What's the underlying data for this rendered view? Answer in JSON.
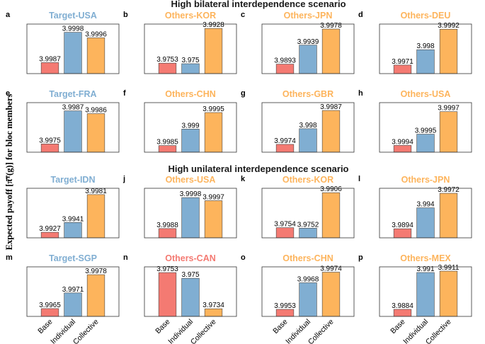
{
  "ylabel": "Expected payoff [πᵀ(g)] for bloc members",
  "scenarios": [
    "High bilateral interdependence scenario",
    "High unilateral interdependence scenario"
  ],
  "x_tick_labels": [
    "Base",
    "Individual",
    "Collective"
  ],
  "colors": {
    "base": "#f47a72",
    "individual": "#80aed2",
    "collective": "#fdb45c",
    "target_title": "#80aed2",
    "others_title": "#fdb45c"
  },
  "chart_data": [
    {
      "type": "bar",
      "letter": "a",
      "title": "Target-USA",
      "title_kind": "target",
      "categories": [
        "Base",
        "Individual",
        "Collective"
      ],
      "values": [
        3.9987,
        3.9998,
        3.9996
      ],
      "labels": [
        "3.9987",
        "3.9998",
        "3.9996"
      ],
      "ylim": [
        3.9983,
        4.0001
      ]
    },
    {
      "type": "bar",
      "letter": "b",
      "title": "Others-KOR",
      "title_kind": "others",
      "categories": [
        "Base",
        "Individual",
        "Collective"
      ],
      "values": [
        3.9753,
        3.975,
        3.9928
      ],
      "labels": [
        "3.9753",
        "3.975",
        "3.9928"
      ],
      "ylim": [
        3.97,
        3.995
      ]
    },
    {
      "type": "bar",
      "letter": "c",
      "title": "Others-JPN",
      "title_kind": "others",
      "categories": [
        "Base",
        "Individual",
        "Collective"
      ],
      "values": [
        3.9893,
        3.9939,
        3.9978
      ],
      "labels": [
        "3.9893",
        "3.9939",
        "3.9978"
      ],
      "ylim": [
        3.987,
        3.999
      ]
    },
    {
      "type": "bar",
      "letter": "d",
      "title": "Others-DEU",
      "title_kind": "others",
      "categories": [
        "Base",
        "Individual",
        "Collective"
      ],
      "values": [
        3.9971,
        3.998,
        3.9992
      ],
      "labels": [
        "3.9971",
        "3.998",
        "3.9992"
      ],
      "ylim": [
        3.9966,
        3.9995
      ]
    },
    {
      "type": "bar",
      "letter": "e",
      "title": "Target-FRA",
      "title_kind": "target",
      "categories": [
        "Base",
        "Individual",
        "Collective"
      ],
      "values": [
        3.9975,
        3.9987,
        3.9986
      ],
      "labels": [
        "3.9975",
        "3.9987",
        "3.9986"
      ],
      "ylim": [
        3.9972,
        3.999
      ]
    },
    {
      "type": "bar",
      "letter": "f",
      "title": "Others-CHN",
      "title_kind": "others",
      "categories": [
        "Base",
        "Individual",
        "Collective"
      ],
      "values": [
        3.9985,
        3.999,
        3.9995
      ],
      "labels": [
        "3.9985",
        "3.999",
        "3.9995"
      ],
      "ylim": [
        3.9983,
        3.9998
      ]
    },
    {
      "type": "bar",
      "letter": "g",
      "title": "Others-GBR",
      "title_kind": "others",
      "categories": [
        "Base",
        "Individual",
        "Collective"
      ],
      "values": [
        3.9974,
        3.998,
        3.9987
      ],
      "labels": [
        "3.9974",
        "3.998",
        "3.9987"
      ],
      "ylim": [
        3.9971,
        3.999
      ]
    },
    {
      "type": "bar",
      "letter": "h",
      "title": "Others-USA",
      "title_kind": "others",
      "categories": [
        "Base",
        "Individual",
        "Collective"
      ],
      "values": [
        3.9994,
        3.9995,
        3.9997
      ],
      "labels": [
        "3.9994",
        "3.9995",
        "3.9997"
      ],
      "ylim": [
        3.99934,
        3.99978
      ]
    },
    {
      "type": "bar",
      "letter": "i",
      "title": "Target-IDN",
      "title_kind": "target",
      "categories": [
        "Base",
        "Individual",
        "Collective"
      ],
      "values": [
        3.9927,
        3.9941,
        3.9981
      ],
      "labels": [
        "3.9927",
        "3.9941",
        "3.9981"
      ],
      "ylim": [
        3.9919,
        3.999
      ]
    },
    {
      "type": "bar",
      "letter": "j",
      "title": "Others-USA",
      "title_kind": "others",
      "categories": [
        "Base",
        "Individual",
        "Collective"
      ],
      "values": [
        3.9988,
        3.9998,
        3.9997
      ],
      "labels": [
        "3.9988",
        "3.9998",
        "3.9997"
      ],
      "ylim": [
        3.9985,
        4.0001
      ]
    },
    {
      "type": "bar",
      "letter": "k",
      "title": "Others-KOR",
      "title_kind": "others",
      "categories": [
        "Base",
        "Individual",
        "Collective"
      ],
      "values": [
        3.9754,
        3.9752,
        3.9906
      ],
      "labels": [
        "3.9754",
        "3.9752",
        "3.9906"
      ],
      "ylim": [
        3.971,
        3.9925
      ]
    },
    {
      "type": "bar",
      "letter": "l",
      "title": "Others-JPN",
      "title_kind": "others",
      "categories": [
        "Base",
        "Individual",
        "Collective"
      ],
      "values": [
        3.9894,
        3.994,
        3.9972
      ],
      "labels": [
        "3.9894",
        "3.994",
        "3.9972"
      ],
      "ylim": [
        3.9874,
        3.9983
      ]
    },
    {
      "type": "bar",
      "letter": "m",
      "title": "Target-SGP",
      "title_kind": "target",
      "categories": [
        "Base",
        "Individual",
        "Collective"
      ],
      "values": [
        3.9965,
        3.9971,
        3.9978
      ],
      "labels": [
        "3.9965",
        "3.9971",
        "3.9978"
      ],
      "ylim": [
        3.9962,
        3.9981
      ]
    },
    {
      "type": "bar",
      "letter": "n",
      "title": "Others-CAN",
      "title_kind": "base",
      "categories": [
        "Base",
        "Individual",
        "Collective"
      ],
      "values": [
        3.9753,
        3.975,
        3.9734
      ],
      "labels": [
        "3.9753",
        "3.975",
        "3.9734"
      ],
      "ylim": [
        3.973,
        3.9756
      ]
    },
    {
      "type": "bar",
      "letter": "o",
      "title": "Others-CHN",
      "title_kind": "others",
      "categories": [
        "Base",
        "Individual",
        "Collective"
      ],
      "values": [
        3.9953,
        3.9968,
        3.9974
      ],
      "labels": [
        "3.9953",
        "3.9968",
        "3.9974"
      ],
      "ylim": [
        3.9949,
        3.9977
      ]
    },
    {
      "type": "bar",
      "letter": "p",
      "title": "Others-MEX",
      "title_kind": "others",
      "categories": [
        "Base",
        "Individual",
        "Collective"
      ],
      "values": [
        3.9884,
        3.991,
        3.9911
      ],
      "labels": [
        "3.9884",
        "3.991",
        "3.9911"
      ],
      "ylim": [
        3.9879,
        3.9914
      ]
    }
  ]
}
